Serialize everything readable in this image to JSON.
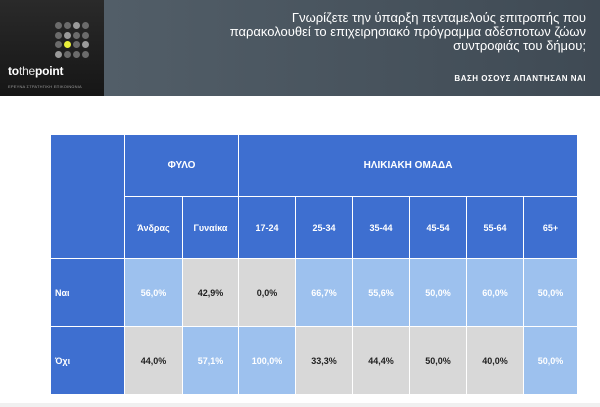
{
  "logo": {
    "brand_bold": "to",
    "brand_thin": "the",
    "brand_bold2": "point",
    "tagline": "ΕΡΕΥΝΑ ΣΤΡΑΤΗΓΙΚΗ ΕΠΙΚΟΙΝΩΝΙΑ"
  },
  "header": {
    "question": "Γνωρίζετε την ύπαρξη πενταμελούς επιτροπής που παρακολουθεί το επιχειρησιακό πρόγραμμα αδέσποτων ζώων συντροφιάς του δήμου;",
    "base": "ΒΑΣΗ ΟΣΟΥΣ ΑΠΑΝΤΗΣΑΝ ΝΑΙ"
  },
  "table": {
    "group_gender": "ΦΥΛΟ",
    "group_age": "ΗΛΙΚΙΑΚΗ ΟΜΑΔΑ",
    "columns": [
      "Άνδρας",
      "Γυναίκα",
      "17-24",
      "25-34",
      "35-44",
      "45-54",
      "55-64",
      "65+"
    ],
    "rows": [
      {
        "label": "Ναι",
        "values": [
          "56,0%",
          "42,9%",
          "0,0%",
          "66,7%",
          "55,6%",
          "50,0%",
          "60,0%",
          "50,0%"
        ],
        "styles": [
          "light",
          "grey",
          "grey",
          "light",
          "light",
          "light",
          "light",
          "light"
        ]
      },
      {
        "label": "Όχι",
        "values": [
          "44,0%",
          "57,1%",
          "100,0%",
          "33,3%",
          "44,4%",
          "50,0%",
          "40,0%",
          "50,0%"
        ],
        "styles": [
          "grey",
          "light",
          "light",
          "grey",
          "grey",
          "grey",
          "grey",
          "light"
        ]
      }
    ]
  },
  "colors": {
    "accent_blue": "#3e6fd0",
    "light_blue": "#9dc1ee",
    "grey_cell": "#d8d8d8",
    "header_band": "#4a5560",
    "logo_highlight": "#e9ef3a"
  }
}
